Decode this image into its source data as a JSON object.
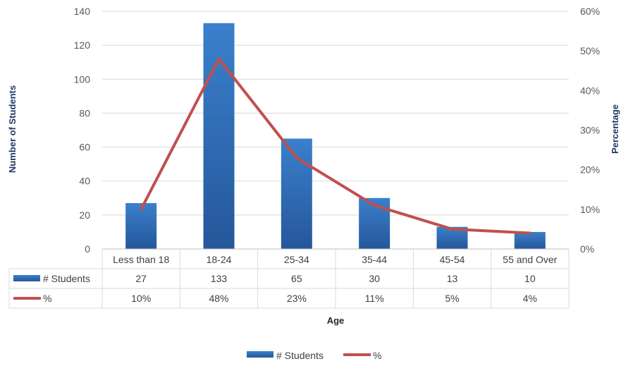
{
  "chart_data": {
    "type": "bar",
    "categories": [
      "Less than 18",
      "18-24",
      "25-34",
      "35-44",
      "45-54",
      "55 and Over"
    ],
    "series": [
      {
        "name": "# Students",
        "type": "bar",
        "axis": "left",
        "values": [
          27,
          133,
          65,
          30,
          13,
          10
        ],
        "color": "#2e6db4"
      },
      {
        "name": "%",
        "type": "line",
        "axis": "right",
        "values": [
          10,
          48,
          23,
          11,
          5,
          4
        ],
        "color": "#c0504d"
      }
    ],
    "table_rows": [
      {
        "label": "# Students",
        "cells": [
          "27",
          "133",
          "65",
          "30",
          "13",
          "10"
        ]
      },
      {
        "label": "%",
        "cells": [
          "10%",
          "48%",
          "23%",
          "11%",
          "5%",
          "4%"
        ]
      }
    ],
    "xlabel": "Age",
    "ylabel": "Number of Students",
    "y2label": "Percentage",
    "ylim": [
      0,
      140
    ],
    "y_ticks": [
      "0",
      "20",
      "40",
      "60",
      "80",
      "100",
      "120",
      "140"
    ],
    "y2lim": [
      0,
      60
    ],
    "y2_ticks": [
      "0%",
      "10%",
      "20%",
      "30%",
      "40%",
      "50%",
      "60%"
    ],
    "grid": true,
    "legend_position": "bottom",
    "legend": [
      "# Students",
      "%"
    ]
  }
}
